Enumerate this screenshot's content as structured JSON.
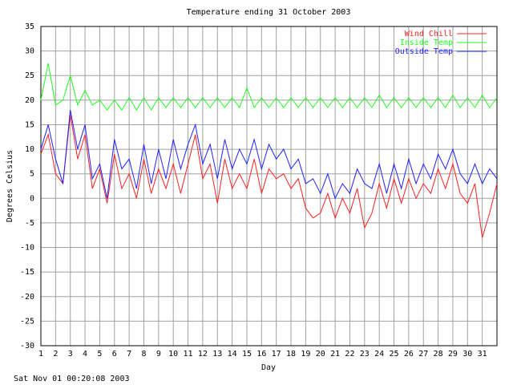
{
  "chart_data": {
    "type": "line",
    "title": "Temperature ending 31 October 2003",
    "x_label": "Day",
    "y_label": "Degrees Celsius",
    "xlim": [
      1,
      32
    ],
    "ylim": [
      -30,
      35
    ],
    "xticks": [
      1,
      2,
      3,
      4,
      5,
      6,
      7,
      8,
      9,
      10,
      11,
      12,
      13,
      14,
      15,
      16,
      17,
      18,
      19,
      20,
      21,
      22,
      23,
      24,
      25,
      26,
      27,
      28,
      29,
      30,
      31
    ],
    "yticks": [
      -30,
      -25,
      -20,
      -15,
      -10,
      -5,
      0,
      5,
      10,
      15,
      20,
      25,
      30,
      35
    ],
    "grid": true,
    "legend": "top-right",
    "x": [
      1,
      1.5,
      2,
      2.5,
      3,
      3.5,
      4,
      4.5,
      5,
      5.5,
      6,
      6.5,
      7,
      7.5,
      8,
      8.5,
      9,
      9.5,
      10,
      10.5,
      11,
      11.5,
      12,
      12.5,
      13,
      13.5,
      14,
      14.5,
      15,
      15.5,
      16,
      16.5,
      17,
      17.5,
      18,
      18.5,
      19,
      19.5,
      20,
      20.5,
      21,
      21.5,
      22,
      22.5,
      23,
      23.5,
      24,
      24.5,
      25,
      25.5,
      26,
      26.5,
      27,
      27.5,
      28,
      28.5,
      29,
      29.5,
      30,
      30.5,
      31,
      31.5,
      32
    ],
    "series": [
      {
        "name": "Wind Chill",
        "color": "#ff2020",
        "values": [
          9,
          13,
          5,
          3,
          17,
          8,
          13,
          2,
          6,
          -1,
          9,
          2,
          5,
          0,
          8,
          1,
          6,
          2,
          7,
          1,
          7,
          13,
          4,
          7,
          -1,
          8,
          2,
          5,
          2,
          8,
          1,
          6,
          4,
          5,
          2,
          4,
          -2,
          -4,
          -3,
          1,
          -4,
          0,
          -3,
          2,
          -6,
          -3,
          3,
          -2,
          4,
          -1,
          4,
          0,
          3,
          1,
          6,
          2,
          7,
          1,
          -1,
          3,
          -8,
          -3,
          3
        ]
      },
      {
        "name": "Inside Temp",
        "color": "#20ff20",
        "values": [
          20,
          27.5,
          19,
          20,
          25,
          19,
          22,
          19,
          20,
          18,
          20,
          18,
          20.5,
          18,
          20.5,
          18,
          20.5,
          18.5,
          20.5,
          18.5,
          20.5,
          18.5,
          20.5,
          18.5,
          20.5,
          18.5,
          20.5,
          18.5,
          22.5,
          18.5,
          20.5,
          18.5,
          20.5,
          18.5,
          20.5,
          18.5,
          20.5,
          18.5,
          20.5,
          18.5,
          20.5,
          18.5,
          20.5,
          18.5,
          20.5,
          18.5,
          21,
          18.5,
          20.5,
          18.5,
          20.5,
          18.5,
          20.5,
          18.5,
          20.5,
          18.5,
          21,
          18.5,
          20.5,
          18.5,
          21,
          18.5,
          20.5
        ]
      },
      {
        "name": "Outside Temp",
        "color": "#2020ff",
        "values": [
          10,
          15,
          8,
          3,
          18,
          10,
          15,
          4,
          7,
          0,
          12,
          6,
          8,
          2,
          11,
          3,
          10,
          4,
          12,
          6,
          11,
          15,
          7,
          11,
          4,
          12,
          6,
          10,
          7,
          12,
          6,
          11,
          8,
          10,
          6,
          8,
          3,
          4,
          1,
          5,
          0,
          3,
          1,
          6,
          3,
          2,
          7,
          1,
          7,
          2,
          8,
          3,
          7,
          4,
          9,
          6,
          10,
          5,
          3,
          7,
          3,
          6,
          4
        ]
      }
    ]
  },
  "footer": "Sat Nov 01 00:20:08 2003"
}
